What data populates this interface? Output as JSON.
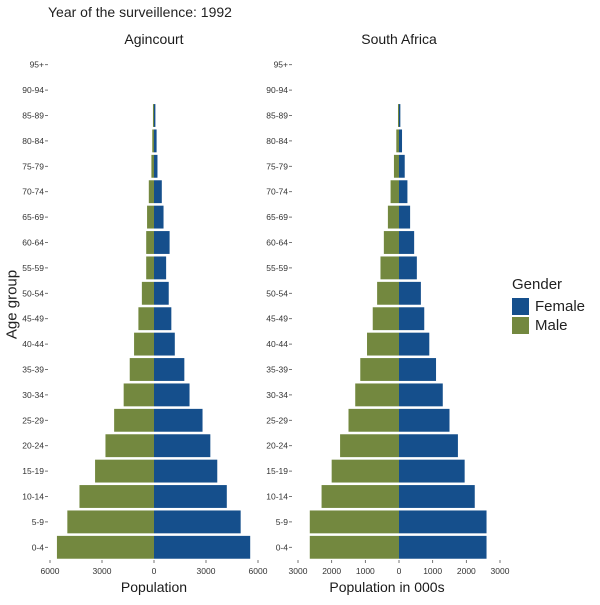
{
  "caption": "Year of the surveillence: 1992",
  "colors": {
    "female": "#154f8c",
    "male": "#73883f"
  },
  "legend": {
    "title": "Gender",
    "items": [
      {
        "label": "Female",
        "color": "#154f8c"
      },
      {
        "label": "Male",
        "color": "#73883f"
      }
    ]
  },
  "chart_data": [
    {
      "type": "bar",
      "orientation": "horizontal",
      "title": "Agincourt",
      "xlabel": "Population",
      "ylabel": "Age group",
      "xlim": [
        -6000,
        6000
      ],
      "xticks": [
        -6000,
        -3000,
        0,
        3000,
        6000
      ],
      "xtick_labels": [
        "6000",
        "3000",
        "0",
        "3000",
        "6000"
      ],
      "grid": false,
      "legend_position": "right",
      "categories": [
        "0-4",
        "5-9",
        "10-14",
        "15-19",
        "20-24",
        "25-29",
        "30-34",
        "35-39",
        "40-44",
        "45-49",
        "50-54",
        "55-59",
        "60-64",
        "65-69",
        "70-74",
        "75-79",
        "80-84",
        "85-89",
        "90-94",
        "95+"
      ],
      "series": [
        {
          "name": "Female",
          "values": [
            5550,
            5000,
            4200,
            3650,
            3250,
            2800,
            2050,
            1750,
            1200,
            1000,
            850,
            700,
            900,
            550,
            450,
            200,
            150,
            80,
            0,
            0
          ]
        },
        {
          "name": "Male",
          "values": [
            5600,
            5000,
            4300,
            3400,
            2800,
            2300,
            1750,
            1400,
            1150,
            900,
            700,
            450,
            450,
            400,
            300,
            150,
            100,
            60,
            0,
            0
          ]
        }
      ]
    },
    {
      "type": "bar",
      "orientation": "horizontal",
      "title": "South Africa",
      "xlabel": "Population in 000s",
      "ylabel": "Age group",
      "xlim": [
        -3000,
        3000
      ],
      "xticks": [
        -3000,
        -2000,
        -1000,
        0,
        1000,
        2000,
        3000
      ],
      "xtick_labels": [
        "3000",
        "2000",
        "1000",
        "0",
        "1000",
        "2000",
        "3000"
      ],
      "grid": false,
      "legend_position": "right",
      "categories": [
        "0-4",
        "5-9",
        "10-14",
        "15-19",
        "20-24",
        "25-29",
        "30-34",
        "35-39",
        "40-44",
        "45-49",
        "50-54",
        "55-59",
        "60-64",
        "65-69",
        "70-74",
        "75-79",
        "80-84",
        "85-89",
        "90-94",
        "95+"
      ],
      "series": [
        {
          "name": "Female",
          "values": [
            2600,
            2600,
            2250,
            1950,
            1750,
            1500,
            1300,
            1100,
            900,
            750,
            650,
            530,
            450,
            330,
            250,
            170,
            90,
            40,
            0,
            0
          ]
        },
        {
          "name": "Male",
          "values": [
            2650,
            2650,
            2300,
            2000,
            1750,
            1500,
            1300,
            1150,
            950,
            780,
            650,
            550,
            450,
            330,
            250,
            150,
            80,
            30,
            0,
            0
          ]
        }
      ]
    }
  ]
}
